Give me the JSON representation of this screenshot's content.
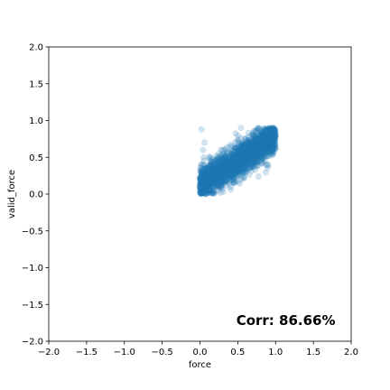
{
  "chart_data": {
    "type": "scatter",
    "title": "",
    "xlabel": "force",
    "ylabel": "valid_force",
    "xlim": [
      -2.0,
      2.0
    ],
    "ylim": [
      -2.0,
      2.0
    ],
    "xticks": [
      -2.0,
      -1.5,
      -1.0,
      -0.5,
      0.0,
      0.5,
      1.0,
      1.5,
      2.0
    ],
    "yticks": [
      -2.0,
      -1.5,
      -1.0,
      -0.5,
      0.0,
      0.5,
      1.0,
      1.5,
      2.0
    ],
    "xtick_labels": [
      "−2.0",
      "−1.5",
      "−1.0",
      "−0.5",
      "0.0",
      "0.5",
      "1.0",
      "1.5",
      "2.0"
    ],
    "ytick_labels": [
      "−2.0",
      "−1.5",
      "−1.0",
      "−0.5",
      "0.0",
      "0.5",
      "1.0",
      "1.5",
      "2.0"
    ],
    "grid": false,
    "legend": "none",
    "annotation": "Corr: 86.66%",
    "marker_color": "#1f77b4",
    "marker_alpha": 0.2,
    "point_cloud": {
      "description_source": "dense cluster of points",
      "x_range": [
        0.0,
        1.0
      ],
      "y_range": [
        0.0,
        0.9
      ],
      "correlation": 0.8666
    },
    "series": [
      {
        "points": [
          [
            0.0,
            0.1
          ],
          [
            0.01,
            0.05
          ],
          [
            0.02,
            0.2
          ],
          [
            0.03,
            0.3
          ],
          [
            0.02,
            0.4
          ],
          [
            0.05,
            0.15
          ],
          [
            0.06,
            0.25
          ],
          [
            0.08,
            0.35
          ],
          [
            0.05,
            0.5
          ],
          [
            0.04,
            0.6
          ],
          [
            0.1,
            0.1
          ],
          [
            0.12,
            0.2
          ],
          [
            0.1,
            0.3
          ],
          [
            0.15,
            0.4
          ],
          [
            0.12,
            0.5
          ],
          [
            0.18,
            0.15
          ],
          [
            0.2,
            0.25
          ],
          [
            0.22,
            0.35
          ],
          [
            0.2,
            0.45
          ],
          [
            0.25,
            0.55
          ],
          [
            0.28,
            0.2
          ],
          [
            0.3,
            0.3
          ],
          [
            0.32,
            0.4
          ],
          [
            0.35,
            0.5
          ],
          [
            0.3,
            0.6
          ],
          [
            0.38,
            0.25
          ],
          [
            0.4,
            0.35
          ],
          [
            0.42,
            0.45
          ],
          [
            0.45,
            0.55
          ],
          [
            0.4,
            0.65
          ],
          [
            0.48,
            0.3
          ],
          [
            0.5,
            0.4
          ],
          [
            0.52,
            0.5
          ],
          [
            0.55,
            0.6
          ],
          [
            0.5,
            0.7
          ],
          [
            0.58,
            0.35
          ],
          [
            0.6,
            0.45
          ],
          [
            0.62,
            0.55
          ],
          [
            0.65,
            0.65
          ],
          [
            0.6,
            0.75
          ],
          [
            0.68,
            0.45
          ],
          [
            0.7,
            0.55
          ],
          [
            0.72,
            0.65
          ],
          [
            0.75,
            0.75
          ],
          [
            0.7,
            0.8
          ],
          [
            0.78,
            0.55
          ],
          [
            0.8,
            0.65
          ],
          [
            0.82,
            0.75
          ],
          [
            0.85,
            0.8
          ],
          [
            0.88,
            0.85
          ],
          [
            0.9,
            0.7
          ],
          [
            0.92,
            0.78
          ],
          [
            0.95,
            0.82
          ],
          [
            0.98,
            0.8
          ],
          [
            0.85,
            0.88
          ],
          [
            0.02,
            0.88
          ],
          [
            0.06,
            0.7
          ],
          [
            0.15,
            0.05
          ],
          [
            0.35,
            0.12
          ],
          [
            0.55,
            0.2
          ]
        ]
      }
    ]
  }
}
